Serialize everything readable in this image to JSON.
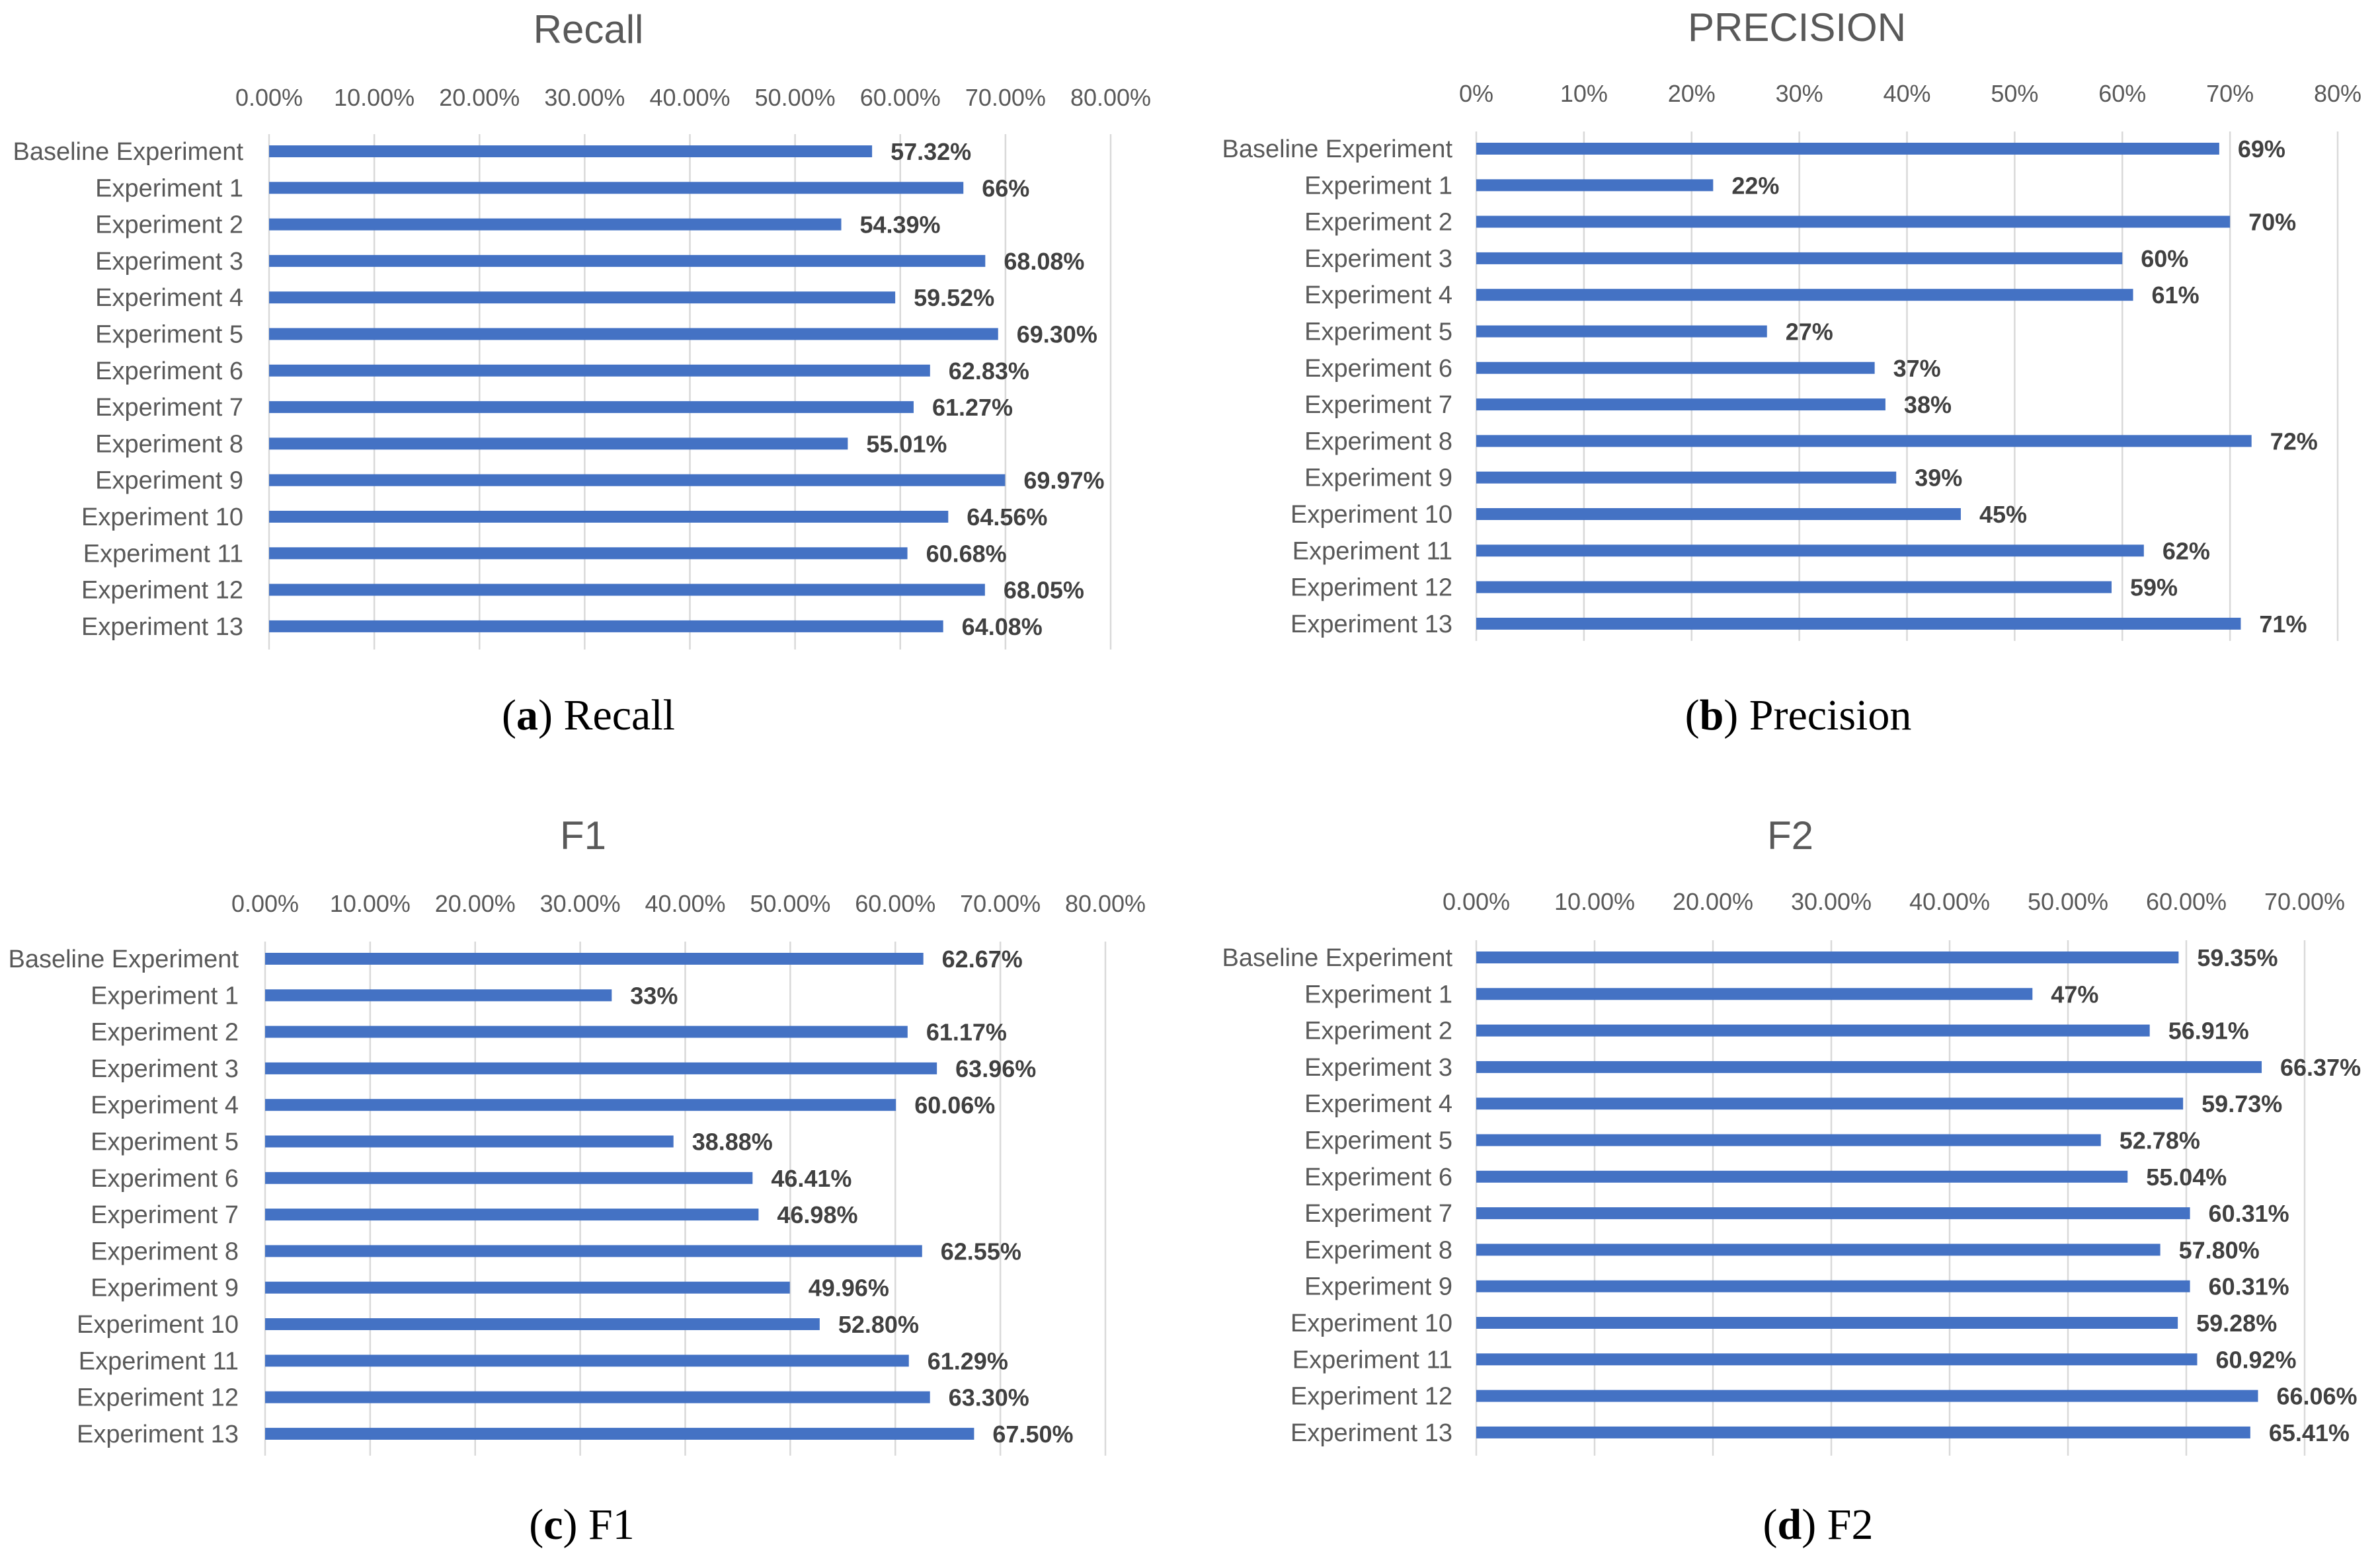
{
  "chart_data": [
    {
      "type": "bar",
      "orientation": "horizontal",
      "title": "Recall",
      "caption_letter": "a",
      "caption_text": "Recall",
      "xlim": [
        0,
        80
      ],
      "ticks": [
        0,
        10,
        20,
        30,
        40,
        50,
        60,
        70,
        80
      ],
      "tick_labels": [
        "0.00%",
        "10.00%",
        "20.00%",
        "30.00%",
        "40.00%",
        "50.00%",
        "60.00%",
        "70.00%",
        "80.00%"
      ],
      "categories": [
        "Baseline Experiment",
        "Experiment 1",
        "Experiment 2",
        "Experiment 3",
        "Experiment 4",
        "Experiment 5",
        "Experiment 6",
        "Experiment 7",
        "Experiment 8",
        "Experiment 9",
        "Experiment 10",
        "Experiment 11",
        "Experiment 12",
        "Experiment 13"
      ],
      "values": [
        57.32,
        66,
        54.39,
        68.08,
        59.52,
        69.3,
        62.83,
        61.27,
        55.01,
        69.97,
        64.56,
        60.68,
        68.05,
        64.08
      ],
      "value_labels": [
        "57.32%",
        "66%",
        "54.39%",
        "68.08%",
        "59.52%",
        "69.30%",
        "62.83%",
        "61.27%",
        "55.01%",
        "69.97%",
        "64.56%",
        "60.68%",
        "68.05%",
        "64.08%"
      ]
    },
    {
      "type": "bar",
      "orientation": "horizontal",
      "title": "PRECISION",
      "caption_letter": "b",
      "caption_text": "Precision",
      "xlim": [
        0,
        80
      ],
      "ticks": [
        0,
        10,
        20,
        30,
        40,
        50,
        60,
        70,
        80
      ],
      "tick_labels": [
        "0%",
        "10%",
        "20%",
        "30%",
        "40%",
        "50%",
        "60%",
        "70%",
        "80%"
      ],
      "categories": [
        "Baseline Experiment",
        "Experiment 1",
        "Experiment 2",
        "Experiment 3",
        "Experiment 4",
        "Experiment 5",
        "Experiment 6",
        "Experiment 7",
        "Experiment 8",
        "Experiment 9",
        "Experiment 10",
        "Experiment 11",
        "Experiment 12",
        "Experiment 13"
      ],
      "values": [
        69,
        22,
        70,
        60,
        61,
        27,
        37,
        38,
        72,
        39,
        45,
        62,
        59,
        71
      ],
      "value_labels": [
        "69%",
        "22%",
        "70%",
        "60%",
        "61%",
        "27%",
        "37%",
        "38%",
        "72%",
        "39%",
        "45%",
        "62%",
        "59%",
        "71%"
      ]
    },
    {
      "type": "bar",
      "orientation": "horizontal",
      "title": "F1",
      "caption_letter": "c",
      "caption_text": "F1",
      "xlim": [
        0,
        80
      ],
      "ticks": [
        0,
        10,
        20,
        30,
        40,
        50,
        60,
        70,
        80
      ],
      "tick_labels": [
        "0.00%",
        "10.00%",
        "20.00%",
        "30.00%",
        "40.00%",
        "50.00%",
        "60.00%",
        "70.00%",
        "80.00%"
      ],
      "categories": [
        "Baseline Experiment",
        "Experiment 1",
        "Experiment 2",
        "Experiment 3",
        "Experiment 4",
        "Experiment 5",
        "Experiment 6",
        "Experiment 7",
        "Experiment 8",
        "Experiment 9",
        "Experiment 10",
        "Experiment 11",
        "Experiment 12",
        "Experiment 13"
      ],
      "values": [
        62.67,
        33,
        61.17,
        63.96,
        60.06,
        38.88,
        46.41,
        46.98,
        62.55,
        49.96,
        52.8,
        61.29,
        63.3,
        67.5
      ],
      "value_labels": [
        "62.67%",
        "33%",
        "61.17%",
        "63.96%",
        "60.06%",
        "38.88%",
        "46.41%",
        "46.98%",
        "62.55%",
        "49.96%",
        "52.80%",
        "61.29%",
        "63.30%",
        "67.50%"
      ]
    },
    {
      "type": "bar",
      "orientation": "horizontal",
      "title": "F2",
      "caption_letter": "d",
      "caption_text": "F2",
      "xlim": [
        0,
        70
      ],
      "ticks": [
        0,
        10,
        20,
        30,
        40,
        50,
        60,
        70
      ],
      "tick_labels": [
        "0.00%",
        "10.00%",
        "20.00%",
        "30.00%",
        "40.00%",
        "50.00%",
        "60.00%",
        "70.00%"
      ],
      "categories": [
        "Baseline Experiment",
        "Experiment 1",
        "Experiment 2",
        "Experiment 3",
        "Experiment 4",
        "Experiment 5",
        "Experiment 6",
        "Experiment 7",
        "Experiment 8",
        "Experiment 9",
        "Experiment 10",
        "Experiment 11",
        "Experiment 12",
        "Experiment 13"
      ],
      "values": [
        59.35,
        47,
        56.91,
        66.37,
        59.73,
        52.78,
        55.04,
        60.31,
        57.8,
        60.31,
        59.28,
        60.92,
        66.06,
        65.41
      ],
      "value_labels": [
        "59.35%",
        "47%",
        "56.91%",
        "66.37%",
        "59.73%",
        "52.78%",
        "55.04%",
        "60.31%",
        "57.80%",
        "60.31%",
        "59.28%",
        "60.92%",
        "66.06%",
        "65.41%"
      ]
    }
  ]
}
